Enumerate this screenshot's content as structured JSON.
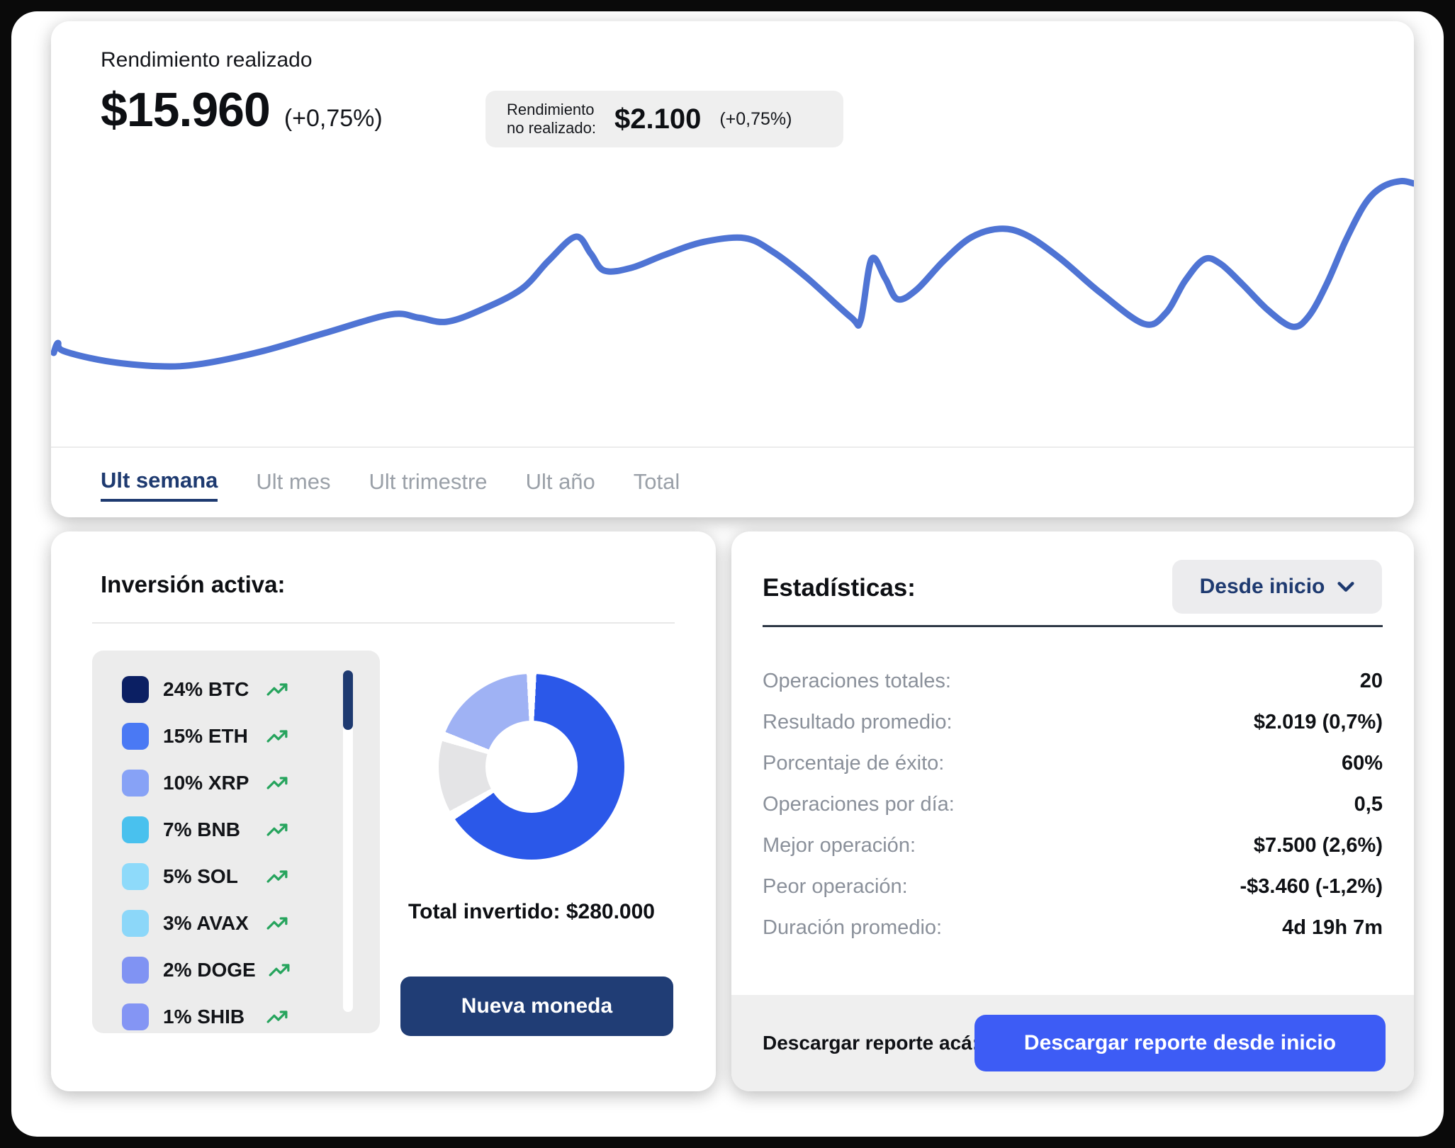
{
  "colors": {
    "accent_navy": "#1e3a70",
    "primary_blue": "#3d5cf5",
    "line_blue": "#4f74d4",
    "trend_green": "#26a45d",
    "donut_blue": "#2b58e9",
    "donut_light_blue": "#9fb2f4",
    "donut_gray": "#e4e4e6"
  },
  "performance_card": {
    "title": "Rendimiento realizado",
    "value": "$15.960",
    "change": "(+0,75%)",
    "unrealized_label_line1": "Rendimiento",
    "unrealized_label_line2": "no realizado:",
    "unrealized_value": "$2.100",
    "unrealized_change": "(+0,75%)",
    "tabs": [
      {
        "label": "Ult semana",
        "active": true
      },
      {
        "label": "Ult mes",
        "active": false
      },
      {
        "label": "Ult trimestre",
        "active": false
      },
      {
        "label": "Ult año",
        "active": false
      },
      {
        "label": "Total",
        "active": false
      }
    ]
  },
  "investment_card": {
    "title": "Inversión activa:",
    "holdings": [
      {
        "label": "24% BTC",
        "color": "#0b1f63",
        "trend": "up"
      },
      {
        "label": "15% ETH",
        "color": "#4a79f4",
        "trend": "up"
      },
      {
        "label": "10% XRP",
        "color": "#87a2f6",
        "trend": "up"
      },
      {
        "label": "7% BNB",
        "color": "#49c1ee",
        "trend": "up"
      },
      {
        "label": "5% SOL",
        "color": "#8edafa",
        "trend": "up"
      },
      {
        "label": "3% AVAX",
        "color": "#8cd7f9",
        "trend": "up"
      },
      {
        "label": "2% DOGE",
        "color": "#8093f3",
        "trend": "up"
      },
      {
        "label": "1% SHIB",
        "color": "#8495f4",
        "trend": "up"
      }
    ],
    "total_label": "Total invertido:",
    "total_value": "$280.000",
    "button_label": "Nueva moneda"
  },
  "stats_card": {
    "title": "Estadísticas:",
    "range_selector": "Desde inicio",
    "rows": [
      {
        "label": "Operaciones totales:",
        "value": "20"
      },
      {
        "label": "Resultado promedio:",
        "value": "$2.019 (0,7%)"
      },
      {
        "label": "Porcentaje de éxito:",
        "value": "60%"
      },
      {
        "label": "Operaciones por día:",
        "value": "0,5"
      },
      {
        "label": "Mejor operación:",
        "value": "$7.500 (2,6%)"
      },
      {
        "label": "Peor operación:",
        "value": "-$3.460 (-1,2%)"
      },
      {
        "label": "Duración promedio:",
        "value": "4d 19h 7m"
      }
    ],
    "download_label": "Descargar reporte acá:",
    "download_button": "Descargar reporte desde inicio"
  },
  "chart_data": [
    {
      "type": "line",
      "color": "#4f74d4",
      "stroke_width": 9,
      "x_range": [
        0,
        100
      ],
      "y_range": [
        0,
        100
      ],
      "y_inverted": true,
      "points_pct": [
        [
          0.2,
          61.7
        ],
        [
          0.5,
          58.3
        ],
        [
          0.9,
          61.0
        ],
        [
          4.0,
          64.5
        ],
        [
          7.9,
          66.3
        ],
        [
          11.0,
          65.5
        ],
        [
          15.6,
          61.0
        ],
        [
          20.0,
          55.0
        ],
        [
          24.9,
          48.5
        ],
        [
          27.0,
          49.6
        ],
        [
          29.0,
          51.0
        ],
        [
          31.5,
          47.0
        ],
        [
          34.5,
          39.8
        ],
        [
          36.5,
          30.0
        ],
        [
          38.5,
          21.7
        ],
        [
          39.6,
          27.5
        ],
        [
          40.6,
          33.4
        ],
        [
          42.6,
          32.4
        ],
        [
          45.0,
          28.0
        ],
        [
          47.9,
          23.5
        ],
        [
          50.9,
          22.2
        ],
        [
          53.0,
          27.0
        ],
        [
          55.5,
          36.0
        ],
        [
          58.7,
          49.5
        ],
        [
          59.4,
          50.5
        ],
        [
          60.2,
          29.5
        ],
        [
          61.2,
          36.0
        ],
        [
          62.1,
          43.2
        ],
        [
          63.5,
          40.0
        ],
        [
          65.5,
          30.0
        ],
        [
          67.5,
          22.0
        ],
        [
          69.6,
          19.0
        ],
        [
          71.5,
          21.0
        ],
        [
          74.0,
          29.0
        ],
        [
          77.0,
          41.0
        ],
        [
          80.2,
          51.7
        ],
        [
          81.8,
          48.0
        ],
        [
          83.2,
          37.0
        ],
        [
          84.6,
          29.5
        ],
        [
          85.8,
          31.0
        ],
        [
          87.4,
          38.0
        ],
        [
          89.3,
          47.0
        ],
        [
          91.1,
          52.7
        ],
        [
          92.3,
          49.0
        ],
        [
          93.6,
          38.0
        ],
        [
          95.0,
          23.0
        ],
        [
          96.4,
          10.5
        ],
        [
          97.6,
          4.8
        ],
        [
          99.0,
          2.6
        ],
        [
          100,
          3.4
        ]
      ]
    },
    {
      "type": "donut",
      "start": "top",
      "direction": "clockwise",
      "gap_deg": 6,
      "segments": [
        {
          "color": "#2b58e9",
          "pct": 68
        },
        {
          "color": "#e4e4e6",
          "pct": 13
        },
        {
          "color": "#9fb2f4",
          "pct": 19
        }
      ]
    }
  ]
}
